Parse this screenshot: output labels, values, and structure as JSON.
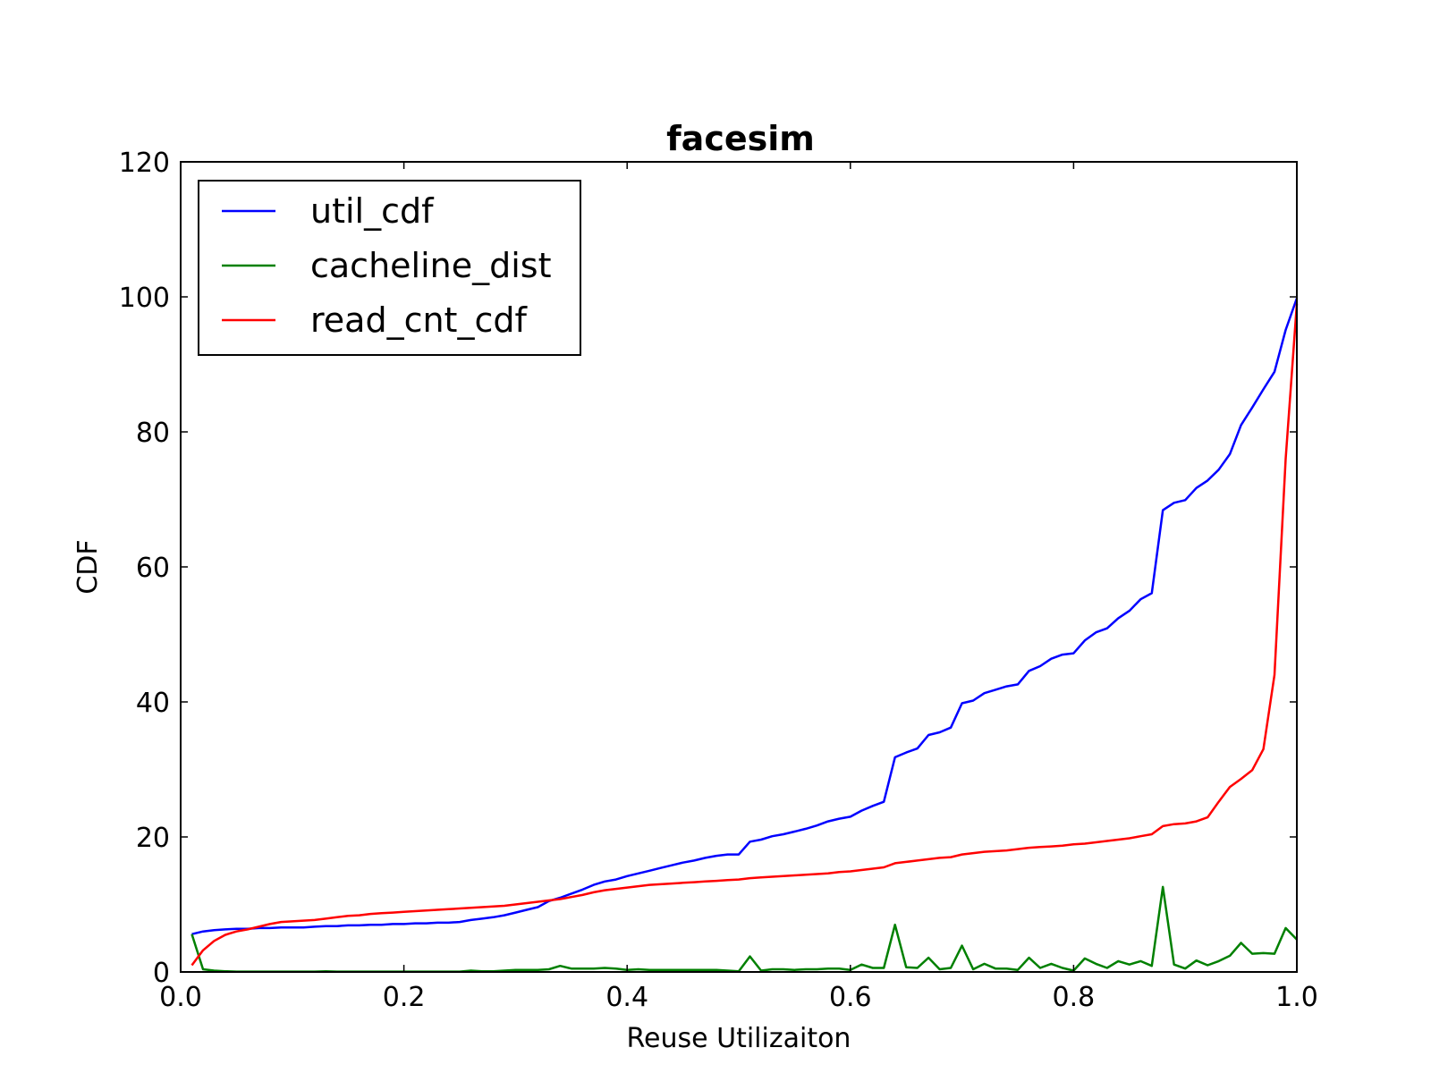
{
  "chart_data": {
    "type": "line",
    "title": "facesim",
    "xlabel": "Reuse Utilizaiton",
    "ylabel": "CDF",
    "xlim": [
      0.0,
      1.0
    ],
    "ylim": [
      0,
      120
    ],
    "xticks": [
      "0.0",
      "0.2",
      "0.4",
      "0.6",
      "0.8",
      "1.0"
    ],
    "yticks": [
      "0",
      "20",
      "40",
      "60",
      "80",
      "100",
      "120"
    ],
    "grid": false,
    "legend_position": "top-left",
    "x": [
      0.01,
      0.02,
      0.03,
      0.04,
      0.05,
      0.06,
      0.07,
      0.08,
      0.09,
      0.1,
      0.11,
      0.12,
      0.13,
      0.14,
      0.15,
      0.16,
      0.17,
      0.18,
      0.19,
      0.2,
      0.21,
      0.22,
      0.23,
      0.24,
      0.25,
      0.26,
      0.27,
      0.28,
      0.29,
      0.3,
      0.31,
      0.32,
      0.33,
      0.34,
      0.35,
      0.36,
      0.37,
      0.38,
      0.39,
      0.4,
      0.41,
      0.42,
      0.43,
      0.44,
      0.45,
      0.46,
      0.47,
      0.48,
      0.49,
      0.5,
      0.51,
      0.52,
      0.53,
      0.54,
      0.55,
      0.56,
      0.57,
      0.58,
      0.59,
      0.6,
      0.61,
      0.62,
      0.63,
      0.64,
      0.65,
      0.66,
      0.67,
      0.68,
      0.69,
      0.7,
      0.71,
      0.72,
      0.73,
      0.74,
      0.75,
      0.76,
      0.77,
      0.78,
      0.79,
      0.8,
      0.81,
      0.82,
      0.83,
      0.84,
      0.85,
      0.86,
      0.87,
      0.88,
      0.89,
      0.9,
      0.91,
      0.92,
      0.93,
      0.94,
      0.95,
      0.96,
      0.97,
      0.98,
      0.99,
      1.0
    ],
    "series": [
      {
        "name": "util_cdf",
        "color": "#0000ff",
        "values": [
          5.6,
          6.0,
          6.2,
          6.3,
          6.4,
          6.4,
          6.5,
          6.5,
          6.6,
          6.6,
          6.6,
          6.7,
          6.8,
          6.8,
          6.9,
          6.9,
          7.0,
          7.0,
          7.1,
          7.1,
          7.2,
          7.2,
          7.3,
          7.3,
          7.4,
          7.7,
          7.9,
          8.1,
          8.4,
          8.8,
          9.2,
          9.6,
          10.5,
          11.0,
          11.6,
          12.2,
          12.9,
          13.4,
          13.7,
          14.2,
          14.6,
          15.0,
          15.4,
          15.8,
          16.2,
          16.5,
          16.9,
          17.2,
          17.4,
          17.4,
          19.3,
          19.6,
          20.1,
          20.4,
          20.8,
          21.2,
          21.7,
          22.3,
          22.7,
          23.0,
          23.9,
          24.6,
          25.2,
          31.8,
          32.5,
          33.1,
          35.1,
          35.5,
          36.2,
          39.8,
          40.2,
          41.3,
          41.8,
          42.3,
          42.6,
          44.6,
          45.3,
          46.4,
          47.0,
          47.2,
          49.1,
          50.3,
          50.9,
          52.4,
          53.5,
          55.2,
          56.1,
          68.4,
          69.5,
          69.9,
          71.7,
          72.8,
          74.4,
          76.7,
          81.0,
          83.6,
          86.3,
          88.9,
          95.1,
          99.8
        ]
      },
      {
        "name": "cacheline_dist",
        "color": "#008000",
        "values": [
          5.6,
          0.4,
          0.2,
          0.1,
          0.05,
          0.05,
          0.05,
          0.05,
          0.05,
          0.05,
          0.05,
          0.05,
          0.1,
          0.05,
          0.05,
          0.05,
          0.05,
          0.05,
          0.05,
          0.05,
          0.05,
          0.05,
          0.05,
          0.05,
          0.05,
          0.2,
          0.1,
          0.1,
          0.2,
          0.3,
          0.3,
          0.3,
          0.4,
          0.9,
          0.5,
          0.5,
          0.5,
          0.6,
          0.5,
          0.3,
          0.4,
          0.3,
          0.3,
          0.3,
          0.3,
          0.3,
          0.3,
          0.3,
          0.2,
          0.1,
          2.3,
          0.2,
          0.4,
          0.4,
          0.3,
          0.4,
          0.4,
          0.5,
          0.5,
          0.3,
          1.1,
          0.6,
          0.6,
          7.0,
          0.7,
          0.6,
          2.1,
          0.4,
          0.6,
          3.9,
          0.4,
          1.2,
          0.5,
          0.5,
          0.3,
          2.1,
          0.6,
          1.2,
          0.6,
          0.2,
          2.0,
          1.2,
          0.6,
          1.6,
          1.1,
          1.6,
          0.9,
          12.6,
          1.1,
          0.5,
          1.7,
          1.0,
          1.6,
          2.4,
          4.3,
          2.7,
          2.8,
          2.7,
          6.5,
          4.8
        ]
      },
      {
        "name": "read_cnt_cdf",
        "color": "#ff0000",
        "values": [
          1.0,
          3.2,
          4.6,
          5.5,
          6.0,
          6.3,
          6.7,
          7.1,
          7.4,
          7.5,
          7.6,
          7.7,
          7.9,
          8.1,
          8.3,
          8.4,
          8.6,
          8.7,
          8.8,
          8.9,
          9.0,
          9.1,
          9.2,
          9.3,
          9.4,
          9.5,
          9.6,
          9.7,
          9.8,
          10.0,
          10.2,
          10.4,
          10.6,
          10.8,
          11.1,
          11.4,
          11.8,
          12.1,
          12.3,
          12.5,
          12.7,
          12.9,
          13.0,
          13.1,
          13.2,
          13.3,
          13.4,
          13.5,
          13.6,
          13.7,
          13.9,
          14.0,
          14.1,
          14.2,
          14.3,
          14.4,
          14.5,
          14.6,
          14.8,
          14.9,
          15.1,
          15.3,
          15.5,
          16.1,
          16.3,
          16.5,
          16.7,
          16.9,
          17.0,
          17.4,
          17.6,
          17.8,
          17.9,
          18.0,
          18.2,
          18.4,
          18.5,
          18.6,
          18.7,
          18.9,
          19.0,
          19.2,
          19.4,
          19.6,
          19.8,
          20.1,
          20.4,
          21.6,
          21.9,
          22.0,
          22.3,
          22.9,
          25.2,
          27.4,
          28.6,
          29.9,
          33.0,
          44.0,
          76.0,
          99.0
        ]
      }
    ]
  }
}
